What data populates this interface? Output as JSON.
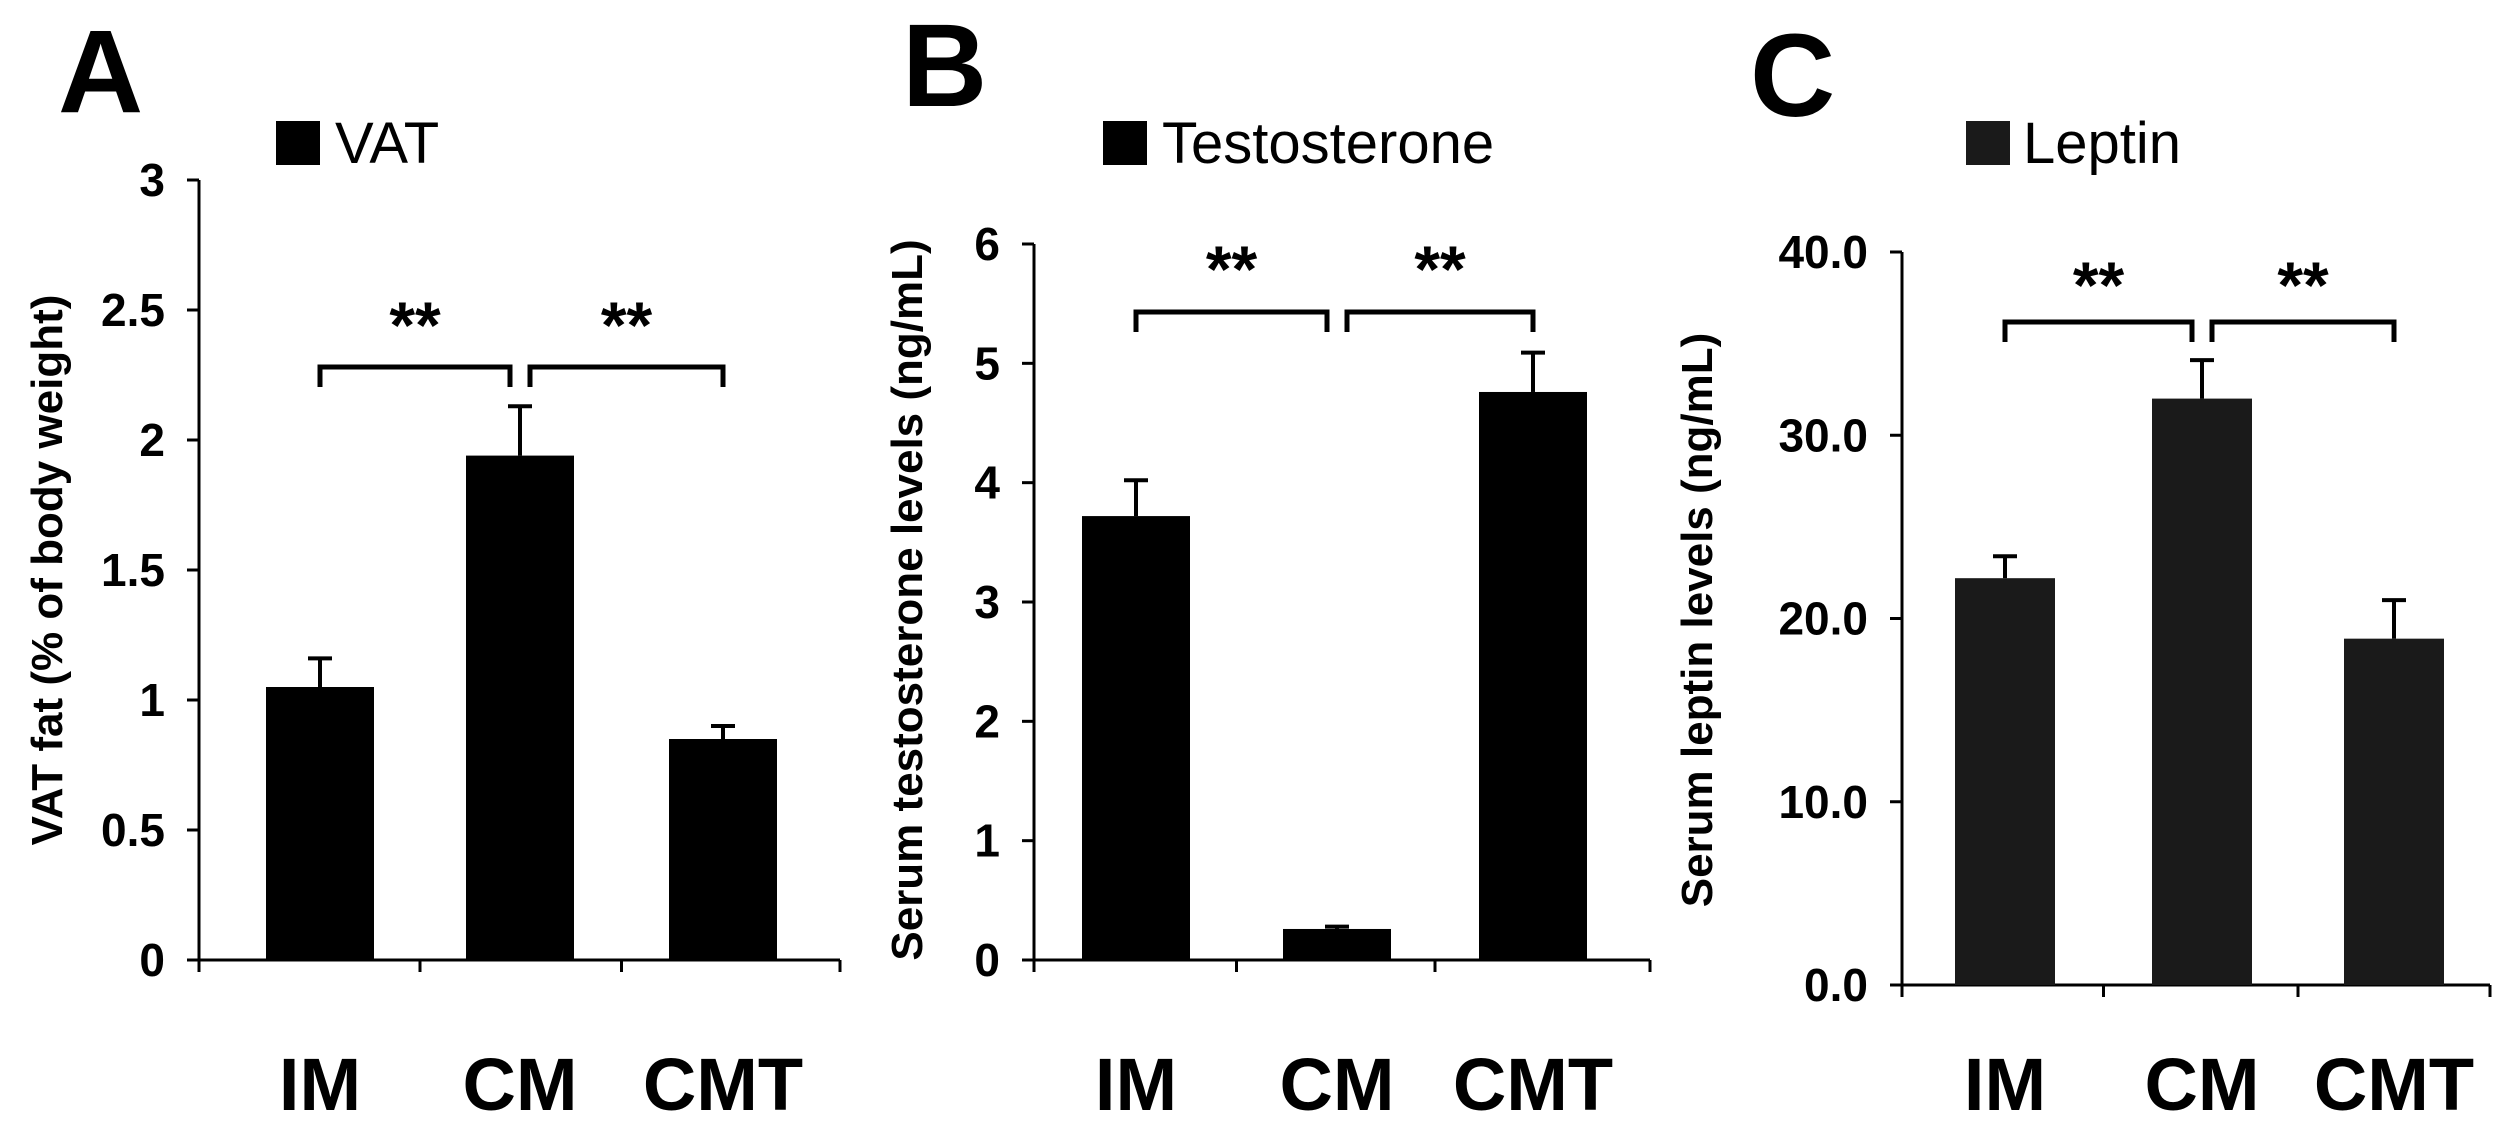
{
  "chart_data": [
    {
      "panel": "A",
      "type": "bar",
      "legend": "VAT",
      "ylabel": "VAT fat (% of body weight)",
      "categories": [
        "IM",
        "CM",
        "CMT"
      ],
      "values": [
        1.05,
        1.94,
        0.85
      ],
      "errors": [
        0.11,
        0.19,
        0.05
      ],
      "ylim": [
        0,
        3
      ],
      "yticks": [
        "0",
        "0.5",
        "1",
        "1.5",
        "2",
        "2.5",
        "3"
      ],
      "comparisons": [
        {
          "from": "IM",
          "to": "CM",
          "label": "**"
        },
        {
          "from": "CM",
          "to": "CMT",
          "label": "**"
        }
      ],
      "color": "#000000"
    },
    {
      "panel": "B",
      "type": "bar",
      "legend": "Testosterone",
      "ylabel": "Serum testosterone levels (ng/mL)",
      "categories": [
        "IM",
        "CM",
        "CMT"
      ],
      "values": [
        3.72,
        0.26,
        4.76
      ],
      "errors": [
        0.3,
        0.02,
        0.33
      ],
      "ylim": [
        0,
        6
      ],
      "yticks": [
        "0",
        "1",
        "2",
        "3",
        "4",
        "5",
        "6"
      ],
      "comparisons": [
        {
          "from": "IM",
          "to": "CM",
          "label": "**"
        },
        {
          "from": "CM",
          "to": "CMT",
          "label": "**"
        }
      ],
      "color": "#000000"
    },
    {
      "panel": "C",
      "type": "bar",
      "legend": "Leptin",
      "ylabel": "Serum leptin levels (ng/mL)",
      "categories": [
        "IM",
        "CM",
        "CMT"
      ],
      "values": [
        22.2,
        32.0,
        18.9
      ],
      "errors": [
        1.2,
        2.1,
        2.1
      ],
      "ylim": [
        0,
        40
      ],
      "yticks": [
        "0.0",
        "10.0",
        "20.0",
        "30.0",
        "40.0"
      ],
      "comparisons": [
        {
          "from": "IM",
          "to": "CM",
          "label": "**"
        },
        {
          "from": "CM",
          "to": "CMT",
          "label": "**"
        }
      ],
      "color": "#1a1a1a"
    }
  ]
}
